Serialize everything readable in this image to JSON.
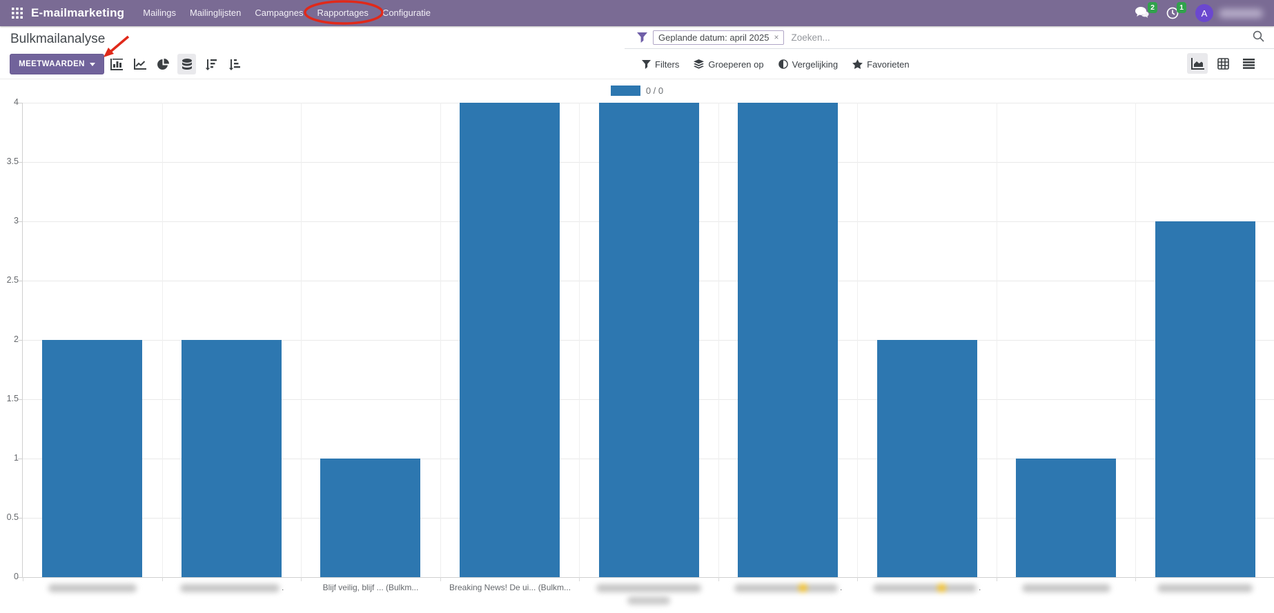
{
  "navbar": {
    "brand": "E-mailmarketing",
    "items": [
      {
        "label": "Mailings"
      },
      {
        "label": "Mailinglijsten"
      },
      {
        "label": "Campagnes"
      },
      {
        "label": "Rapportages",
        "annotated": "red-circle"
      },
      {
        "label": "Configuratie"
      }
    ],
    "systray": {
      "messages_count": "2",
      "activities_count": "1",
      "avatar_initial": "A",
      "user_name_redacted": true
    }
  },
  "control_panel": {
    "title": "Bulkmailanalyse",
    "measures_button": "MEETWAARDEN",
    "search": {
      "facet_label": "Geplande datum: april 2025",
      "facet_remove": "×",
      "placeholder": "Zoeken..."
    },
    "chart_toolbar": [
      "bar-chart",
      "line-chart",
      "pie-chart",
      "stacked",
      "sort-descending",
      "sort-ascending"
    ],
    "filter_menus": [
      {
        "label": "Filters",
        "icon": "funnel-icon"
      },
      {
        "label": "Groeperen op",
        "icon": "layers-icon"
      },
      {
        "label": "Vergelijking",
        "icon": "contrast-icon"
      },
      {
        "label": "Favorieten",
        "icon": "star-icon"
      }
    ],
    "view_switcher": [
      "graph-view",
      "pivot-view",
      "list-view"
    ]
  },
  "legend": {
    "label": "0 / 0"
  },
  "annotations": {
    "circle_target": "Rapportages",
    "arrow_target": "bar-chart-button",
    "color": "#e0291a"
  },
  "chart_data": {
    "type": "bar",
    "title": "",
    "xlabel": "",
    "ylabel": "",
    "ylim": [
      0,
      4
    ],
    "yticks": [
      0,
      0.5,
      1,
      1.5,
      2,
      2.5,
      3,
      3.5,
      4
    ],
    "grid": true,
    "legend_position": "top",
    "bar_color": "#2d77b0",
    "series": [
      {
        "name": "0 / 0",
        "values": [
          2,
          2,
          1,
          4,
          4,
          4,
          2,
          1,
          3
        ]
      }
    ],
    "values": [
      2,
      2,
      1,
      4,
      4,
      4,
      2,
      1,
      3
    ],
    "categories": [
      {
        "label": "",
        "redacted": true,
        "blur_w": 128
      },
      {
        "label": "",
        "redacted": true,
        "blur_w": 144,
        "suffix": "."
      },
      {
        "label": "Blijf veilig, blijf ... (Bulkm...",
        "redacted": false
      },
      {
        "label": "Breaking News! De ui... (Bulkm...",
        "redacted": false
      },
      {
        "label": "",
        "redacted": true,
        "blur_w": 152,
        "blur_w2": 62
      },
      {
        "label": "",
        "redacted": true,
        "blur_w": 150,
        "emoji": true,
        "suffix": "."
      },
      {
        "label": "",
        "redacted": true,
        "blur_w": 150,
        "emoji": true,
        "suffix": "."
      },
      {
        "label": "",
        "redacted": true,
        "blur_w": 128
      },
      {
        "label": "",
        "redacted": true,
        "blur_w": 138
      }
    ]
  }
}
